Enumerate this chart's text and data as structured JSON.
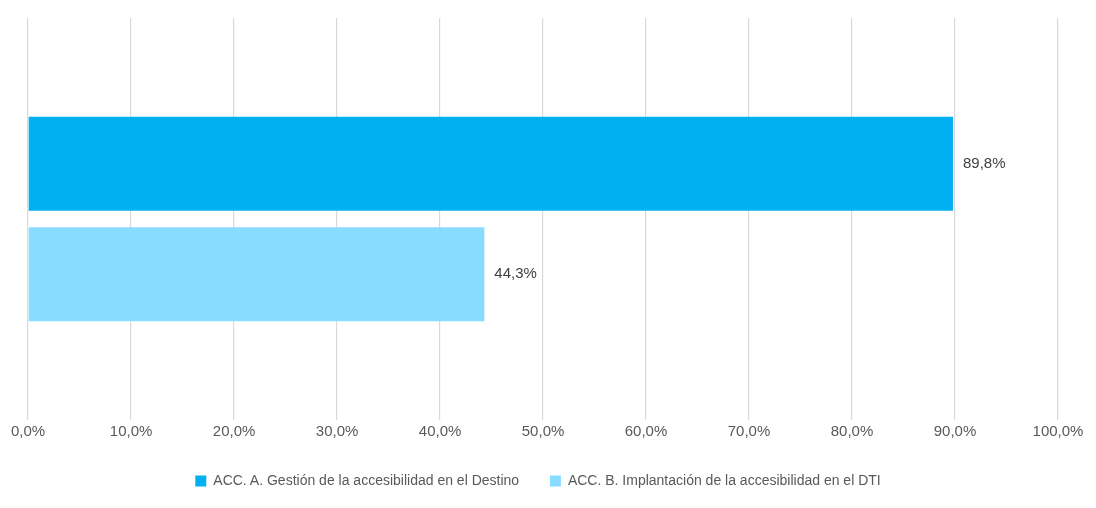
{
  "chart_data": {
    "type": "bar",
    "orientation": "horizontal",
    "categories": [
      null
    ],
    "series": [
      {
        "name": "ACC. A. Gestión de la accesibilidad en el Destino",
        "color": "#00b0f0",
        "values": [
          89.8
        ],
        "value_labels": [
          "89,8%"
        ]
      },
      {
        "name": "ACC. B. Implantación de la accesibilidad en el DTI",
        "color": "#87dcff",
        "values": [
          44.3
        ],
        "value_labels": [
          "44,3%"
        ]
      }
    ],
    "xlim": [
      0,
      100
    ],
    "xticks": [
      {
        "value": 0,
        "label": "0,0%"
      },
      {
        "value": 10,
        "label": "10,0%"
      },
      {
        "value": 20,
        "label": "20,0%"
      },
      {
        "value": 30,
        "label": "30,0%"
      },
      {
        "value": 40,
        "label": "40,0%"
      },
      {
        "value": 50,
        "label": "50,0%"
      },
      {
        "value": 60,
        "label": "60,0%"
      },
      {
        "value": 70,
        "label": "70,0%"
      },
      {
        "value": 80,
        "label": "80,0%"
      },
      {
        "value": 90,
        "label": "90,0%"
      },
      {
        "value": 100,
        "label": "100,0%"
      }
    ],
    "grid": "x",
    "legend": "bottom",
    "tick_labels": "x"
  }
}
